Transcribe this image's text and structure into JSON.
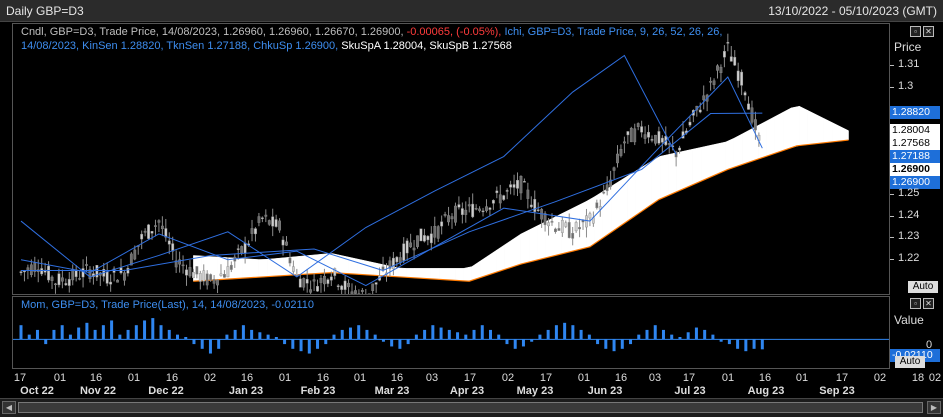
{
  "window": {
    "title": "Daily GBP=D3",
    "date_range": "13/10/2022 - 05/10/2023 (GMT)"
  },
  "main_legend": {
    "line1_prefix": "Cndl, GBP=D3, Trade Price, 14/08/2023, 1.26960, 1.26960, 1.26670, 1.26900,",
    "line1_change": "-0.00065, (-0.05%),",
    "line1_ichi": "Ichi, GBP=D3, Trade Price,  9, 26, 52, 26, 26,",
    "line2_blue": "14/08/2023, KinSen 1.28820, TknSen 1.27188, ChkuSp 1.26900,",
    "line2_white": "SkuSpA 1.28004, SkuSpB 1.27568"
  },
  "mom_legend": {
    "text": "Mom, GBP=D3, Trade Price(Last),  14, 14/08/2023, -0.02110"
  },
  "axis": {
    "price_title": "Price",
    "value_title": "Value",
    "auto_label": "Auto",
    "price_ticks": [
      "1.31",
      "1.3",
      "1.25",
      "1.24",
      "1.23",
      "1.22"
    ],
    "mom_ticks": [
      "0"
    ],
    "tags": [
      {
        "label": "1.28820",
        "bg": "#1e6fd9",
        "fg": "#ffffff"
      },
      {
        "label": "1.28004",
        "bg": "#ffffff",
        "fg": "#000000"
      },
      {
        "label": "1.27568",
        "bg": "#ffffff",
        "fg": "#000000"
      },
      {
        "label": "1.27188",
        "bg": "#1e6fd9",
        "fg": "#ffffff"
      },
      {
        "label": "1.26900",
        "bg": "#ffffff",
        "fg": "#000000"
      },
      {
        "label": "1.26900",
        "bg": "#1e6fd9",
        "fg": "#ffffff"
      }
    ],
    "mom_tag": {
      "label": "-0.02110",
      "bg": "#1e6fd9",
      "fg": "#ffffff"
    }
  },
  "x_axis": {
    "days": [
      "17",
      "01",
      "16",
      "01",
      "16",
      "02",
      "16",
      "01",
      "16",
      "01",
      "16",
      "03",
      "17",
      "02",
      "17",
      "01",
      "16",
      "03",
      "17",
      "01",
      "16",
      "01",
      "17",
      "02",
      "18",
      "02"
    ],
    "months": [
      "Oct 22",
      "Nov 22",
      "Dec 22",
      "Jan 23",
      "Feb 23",
      "Mar 23",
      "Apr 23",
      "May 23",
      "Jun 23",
      "Jul 23",
      "Aug 23",
      "Sep 23"
    ]
  },
  "colors": {
    "candle": "#8c8c8c",
    "ichimoku": "#2f6fe0",
    "cloud_bull": "#ffffff",
    "cloud_bear": "#ff7a00",
    "momentum": "#2f86f0",
    "background": "#000000"
  },
  "chart_data": [
    {
      "type": "candlestick-ichimoku",
      "instrument": "GBP=D3",
      "x_range": [
        "2022-10-17",
        "2023-10-02"
      ],
      "ylim": [
        1.205,
        1.325
      ],
      "ichimoku_params": [
        9,
        26,
        52,
        26,
        26
      ],
      "last_bar": {
        "date": "14/08/2023",
        "open": 1.2696,
        "high": 1.2696,
        "low": 1.2667,
        "close": 1.269
      },
      "close_series": [
        {
          "date": "2022-10-17",
          "close": 1.214
        },
        {
          "date": "2022-10-24",
          "close": 1.218
        },
        {
          "date": "2022-10-31",
          "close": 1.21
        },
        {
          "date": "2022-11-07",
          "close": 1.212
        },
        {
          "date": "2022-11-14",
          "close": 1.215
        },
        {
          "date": "2022-11-21",
          "close": 1.212
        },
        {
          "date": "2022-11-28",
          "close": 1.214
        },
        {
          "date": "2022-12-05",
          "close": 1.23
        },
        {
          "date": "2022-12-12",
          "close": 1.238
        },
        {
          "date": "2022-12-19",
          "close": 1.22
        },
        {
          "date": "2022-12-26",
          "close": 1.214
        },
        {
          "date": "2023-01-02",
          "close": 1.21
        },
        {
          "date": "2023-01-09",
          "close": 1.215
        },
        {
          "date": "2023-01-16",
          "close": 1.226
        },
        {
          "date": "2023-01-23",
          "close": 1.239
        },
        {
          "date": "2023-01-30",
          "close": 1.235
        },
        {
          "date": "2023-02-06",
          "close": 1.212
        },
        {
          "date": "2023-02-13",
          "close": 1.208
        },
        {
          "date": "2023-02-20",
          "close": 1.214
        },
        {
          "date": "2023-02-27",
          "close": 1.206
        },
        {
          "date": "2023-03-06",
          "close": 1.203
        },
        {
          "date": "2023-03-13",
          "close": 1.213
        },
        {
          "date": "2023-03-20",
          "close": 1.222
        },
        {
          "date": "2023-03-27",
          "close": 1.23
        },
        {
          "date": "2023-04-03",
          "close": 1.232
        },
        {
          "date": "2023-04-10",
          "close": 1.241
        },
        {
          "date": "2023-04-17",
          "close": 1.243
        },
        {
          "date": "2023-04-24",
          "close": 1.246
        },
        {
          "date": "2023-05-01",
          "close": 1.25
        },
        {
          "date": "2023-05-08",
          "close": 1.255
        },
        {
          "date": "2023-05-15",
          "close": 1.243
        },
        {
          "date": "2023-05-22",
          "close": 1.236
        },
        {
          "date": "2023-05-29",
          "close": 1.233
        },
        {
          "date": "2023-06-05",
          "close": 1.238
        },
        {
          "date": "2023-06-12",
          "close": 1.252
        },
        {
          "date": "2023-06-19",
          "close": 1.275
        },
        {
          "date": "2023-06-26",
          "close": 1.281
        },
        {
          "date": "2023-07-03",
          "close": 1.276
        },
        {
          "date": "2023-07-10",
          "close": 1.27
        },
        {
          "date": "2023-07-17",
          "close": 1.286
        },
        {
          "date": "2023-07-24",
          "close": 1.3
        },
        {
          "date": "2023-07-31",
          "close": 1.318
        },
        {
          "date": "2023-08-07",
          "close": 1.3
        },
        {
          "date": "2023-08-14",
          "close": 1.269
        }
      ],
      "tenkan_sen": [
        {
          "date": "2022-10-17",
          "y": 1.22
        },
        {
          "date": "2022-11-14",
          "y": 1.214
        },
        {
          "date": "2022-12-12",
          "y": 1.232
        },
        {
          "date": "2023-01-09",
          "y": 1.22
        },
        {
          "date": "2023-02-06",
          "y": 1.224
        },
        {
          "date": "2023-03-06",
          "y": 1.208
        },
        {
          "date": "2023-04-03",
          "y": 1.226
        },
        {
          "date": "2023-05-01",
          "y": 1.244
        },
        {
          "date": "2023-06-05",
          "y": 1.238
        },
        {
          "date": "2023-07-03",
          "y": 1.272
        },
        {
          "date": "2023-07-31",
          "y": 1.305
        },
        {
          "date": "2023-08-14",
          "y": 1.27188
        }
      ],
      "kijun_sen": [
        {
          "date": "2022-10-17",
          "y": 1.215
        },
        {
          "date": "2022-11-28",
          "y": 1.215
        },
        {
          "date": "2023-01-02",
          "y": 1.222
        },
        {
          "date": "2023-02-13",
          "y": 1.225
        },
        {
          "date": "2023-03-13",
          "y": 1.215
        },
        {
          "date": "2023-04-17",
          "y": 1.233
        },
        {
          "date": "2023-05-22",
          "y": 1.247
        },
        {
          "date": "2023-06-26",
          "y": 1.262
        },
        {
          "date": "2023-07-24",
          "y": 1.288
        },
        {
          "date": "2023-08-14",
          "y": 1.2882
        }
      ],
      "chikou_span": [
        {
          "date": "2022-10-17",
          "y": 1.238
        },
        {
          "date": "2022-11-14",
          "y": 1.212
        },
        {
          "date": "2022-12-12",
          "y": 1.222
        },
        {
          "date": "2023-01-09",
          "y": 1.233
        },
        {
          "date": "2023-02-06",
          "y": 1.212
        },
        {
          "date": "2023-03-06",
          "y": 1.235
        },
        {
          "date": "2023-04-03",
          "y": 1.252
        },
        {
          "date": "2023-05-01",
          "y": 1.268
        },
        {
          "date": "2023-05-29",
          "y": 1.298
        },
        {
          "date": "2023-06-19",
          "y": 1.315
        },
        {
          "date": "2023-07-10",
          "y": 1.269
        }
      ],
      "senkou_span_a": [
        {
          "date": "2022-12-26",
          "y": 1.222
        },
        {
          "date": "2023-01-23",
          "y": 1.22
        },
        {
          "date": "2023-02-20",
          "y": 1.223
        },
        {
          "date": "2023-03-20",
          "y": 1.216
        },
        {
          "date": "2023-04-17",
          "y": 1.216
        },
        {
          "date": "2023-05-08",
          "y": 1.232
        },
        {
          "date": "2023-06-05",
          "y": 1.248
        },
        {
          "date": "2023-07-03",
          "y": 1.268
        },
        {
          "date": "2023-07-31",
          "y": 1.275
        },
        {
          "date": "2023-08-28",
          "y": 1.292
        },
        {
          "date": "2023-09-18",
          "y": 1.28004
        }
      ],
      "senkou_span_b": [
        {
          "date": "2022-12-26",
          "y": 1.21
        },
        {
          "date": "2023-01-23",
          "y": 1.212
        },
        {
          "date": "2023-02-20",
          "y": 1.214
        },
        {
          "date": "2023-03-20",
          "y": 1.212
        },
        {
          "date": "2023-04-17",
          "y": 1.21
        },
        {
          "date": "2023-05-08",
          "y": 1.218
        },
        {
          "date": "2023-06-05",
          "y": 1.226
        },
        {
          "date": "2023-07-03",
          "y": 1.248
        },
        {
          "date": "2023-07-31",
          "y": 1.262
        },
        {
          "date": "2023-08-28",
          "y": 1.273
        },
        {
          "date": "2023-09-18",
          "y": 1.27568
        }
      ]
    },
    {
      "type": "bar",
      "indicator": "Momentum",
      "period": 14,
      "ylim": [
        -0.05,
        0.06
      ],
      "last_value": {
        "date": "14/08/2023",
        "value": -0.0211
      },
      "values": [
        0.03,
        0.01,
        0.02,
        -0.01,
        0.02,
        0.03,
        0.01,
        0.025,
        0.035,
        0.02,
        0.03,
        0.04,
        0.01,
        0.02,
        0.03,
        0.04,
        0.045,
        0.03,
        0.02,
        0.01,
        0.005,
        -0.01,
        -0.02,
        -0.03,
        -0.02,
        0.01,
        0.02,
        0.03,
        0.02,
        0.015,
        0.01,
        0.005,
        -0.01,
        -0.02,
        -0.025,
        -0.03,
        -0.02,
        -0.01,
        0.01,
        0.02,
        0.025,
        0.03,
        0.02,
        0.01,
        -0.005,
        -0.015,
        -0.02,
        -0.01,
        0.01,
        0.02,
        0.03,
        0.025,
        0.02,
        0.015,
        0.01,
        0.02,
        0.03,
        0.02,
        0.01,
        -0.01,
        -0.02,
        -0.015,
        -0.005,
        0.01,
        0.02,
        0.03,
        0.035,
        0.03,
        0.02,
        0.01,
        -0.01,
        -0.02,
        -0.025,
        -0.02,
        -0.01,
        0.01,
        0.02,
        0.03,
        0.02,
        0.01,
        0.005,
        0.015,
        0.025,
        0.02,
        0.01,
        -0.005,
        -0.01,
        -0.02,
        -0.025,
        -0.02,
        -0.0211
      ]
    }
  ]
}
